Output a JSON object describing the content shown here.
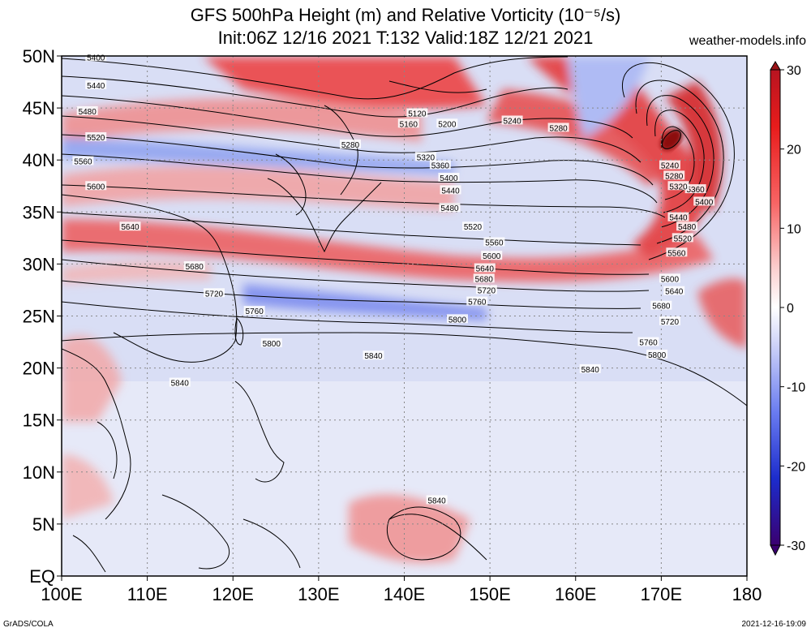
{
  "header": {
    "title_line1": "GFS 500hPa Height (m) and Relative Vorticity (10⁻⁵/s)",
    "title_line2": "Init:06Z 12/16 2021 T:132 Valid:18Z 12/21 2021",
    "site": "weather-models.info"
  },
  "footer": {
    "left": "GrADS/COLA",
    "right": "2021-12-16-19:09"
  },
  "map": {
    "lat_labels": [
      "50N",
      "45N",
      "40N",
      "35N",
      "30N",
      "25N",
      "20N",
      "15N",
      "10N",
      "5N",
      "EQ"
    ],
    "lat_values": [
      50,
      45,
      40,
      35,
      30,
      25,
      20,
      15,
      10,
      5,
      0
    ],
    "lon_labels": [
      "100E",
      "110E",
      "120E",
      "130E",
      "140E",
      "150E",
      "160E",
      "170E",
      "180"
    ],
    "lon_values": [
      100,
      110,
      120,
      130,
      140,
      150,
      160,
      170,
      180
    ],
    "extent": {
      "lon_min": 100,
      "lon_max": 180,
      "lat_min": 0,
      "lat_max": 50
    },
    "contour_labels": [
      {
        "text": "5400",
        "lon": 104,
        "lat": 49.9
      },
      {
        "text": "5440",
        "lon": 104,
        "lat": 47.2
      },
      {
        "text": "5480",
        "lon": 103,
        "lat": 44.7
      },
      {
        "text": "5520",
        "lon": 104,
        "lat": 42.2
      },
      {
        "text": "5560",
        "lon": 102.5,
        "lat": 39.9
      },
      {
        "text": "5600",
        "lon": 104,
        "lat": 37.5
      },
      {
        "text": "5640",
        "lon": 108,
        "lat": 33.6
      },
      {
        "text": "5680",
        "lon": 115.5,
        "lat": 29.8
      },
      {
        "text": "5720",
        "lon": 117.8,
        "lat": 27.2
      },
      {
        "text": "5760",
        "lon": 122.5,
        "lat": 25.5
      },
      {
        "text": "5800",
        "lon": 124.5,
        "lat": 22.4
      },
      {
        "text": "5840",
        "lon": 113.8,
        "lat": 18.6
      },
      {
        "text": "5120",
        "lon": 141.5,
        "lat": 44.5
      },
      {
        "text": "5160",
        "lon": 140.5,
        "lat": 43.5
      },
      {
        "text": "5200",
        "lon": 145,
        "lat": 43.5
      },
      {
        "text": "5240",
        "lon": 152.6,
        "lat": 43.8
      },
      {
        "text": "5280",
        "lon": 158,
        "lat": 43.1
      },
      {
        "text": "5280",
        "lon": 133.7,
        "lat": 41.5
      },
      {
        "text": "5320",
        "lon": 142.5,
        "lat": 40.3
      },
      {
        "text": "5360",
        "lon": 144.2,
        "lat": 39.5
      },
      {
        "text": "5400",
        "lon": 145.2,
        "lat": 38.3
      },
      {
        "text": "5440",
        "lon": 145.4,
        "lat": 37.1
      },
      {
        "text": "5480",
        "lon": 145.3,
        "lat": 35.4
      },
      {
        "text": "5520",
        "lon": 148,
        "lat": 33.6
      },
      {
        "text": "5560",
        "lon": 150.5,
        "lat": 32.1
      },
      {
        "text": "5600",
        "lon": 150.2,
        "lat": 30.8
      },
      {
        "text": "5640",
        "lon": 149.4,
        "lat": 29.6
      },
      {
        "text": "5680",
        "lon": 149.3,
        "lat": 28.6
      },
      {
        "text": "5720",
        "lon": 149.6,
        "lat": 27.5
      },
      {
        "text": "5760",
        "lon": 148.5,
        "lat": 26.4
      },
      {
        "text": "5800",
        "lon": 146.2,
        "lat": 24.7
      },
      {
        "text": "5840",
        "lon": 136.4,
        "lat": 21.2
      },
      {
        "text": "5840",
        "lon": 161.7,
        "lat": 19.9
      },
      {
        "text": "5800",
        "lon": 169.5,
        "lat": 21.3
      },
      {
        "text": "5760",
        "lon": 168.5,
        "lat": 22.5
      },
      {
        "text": "5720",
        "lon": 171,
        "lat": 24.5
      },
      {
        "text": "5680",
        "lon": 170,
        "lat": 26.0
      },
      {
        "text": "5640",
        "lon": 171.5,
        "lat": 27.4
      },
      {
        "text": "5600",
        "lon": 171,
        "lat": 28.6
      },
      {
        "text": "5560",
        "lon": 171.8,
        "lat": 31.1
      },
      {
        "text": "5520",
        "lon": 172.5,
        "lat": 32.5
      },
      {
        "text": "5480",
        "lon": 173,
        "lat": 33.6
      },
      {
        "text": "5440",
        "lon": 172,
        "lat": 34.5
      },
      {
        "text": "5400",
        "lon": 175,
        "lat": 36.0
      },
      {
        "text": "5360",
        "lon": 174,
        "lat": 37.2
      },
      {
        "text": "5320",
        "lon": 172,
        "lat": 37.5
      },
      {
        "text": "5280",
        "lon": 171.5,
        "lat": 38.5
      },
      {
        "text": "5240",
        "lon": 171,
        "lat": 39.5
      },
      {
        "text": "5840",
        "lon": 143.8,
        "lat": 7.3
      }
    ]
  },
  "colorbar": {
    "tick_labels": [
      "30",
      "20",
      "10",
      "0",
      "-10",
      "-20",
      "-30"
    ],
    "tick_values": [
      30,
      20,
      10,
      0,
      -10,
      -20,
      -30
    ],
    "colors_top_to_bottom": [
      "#c0141e",
      "#f01e1e",
      "#f86060",
      "#fac8c8",
      "#ffffff",
      "#c8cdf8",
      "#6478f0",
      "#1428d2",
      "#3c0078"
    ]
  },
  "palette": {
    "pos_strong": "#e02020",
    "pos_light": "#f6a8a8",
    "neg_light": "#b8c4f2",
    "neg_strong": "#2840d8",
    "background_field": "#d6dcf4"
  }
}
